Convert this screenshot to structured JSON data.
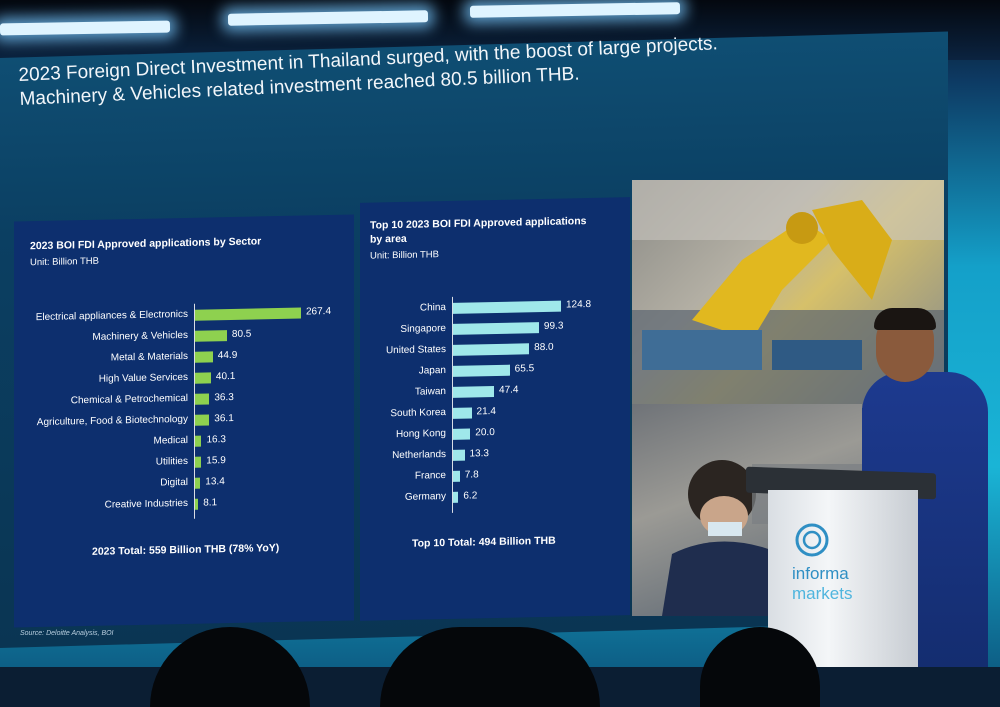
{
  "slide": {
    "headline_line1": "2023 Foreign Direct Investment in Thailand surged, with the boost of large projects.",
    "headline_line2": "Machinery & Vehicles related investment reached 80.5 billion THB.",
    "source": "Source: Deloitte Analysis, BOI"
  },
  "sector_chart": {
    "title": "2023 BOI FDI Approved applications by Sector",
    "unit": "Unit: Billion THB",
    "total": "2023 Total: 559 Billion THB (78% YoY)",
    "color": "#8ed14f",
    "rows": [
      {
        "label": "Electrical appliances & Electronics",
        "value": 267.4,
        "value_text": "267.4"
      },
      {
        "label": "Machinery & Vehicles",
        "value": 80.5,
        "value_text": "80.5"
      },
      {
        "label": "Metal & Materials",
        "value": 44.9,
        "value_text": "44.9"
      },
      {
        "label": "High Value Services",
        "value": 40.1,
        "value_text": "40.1"
      },
      {
        "label": "Chemical & Petrochemical",
        "value": 36.3,
        "value_text": "36.3"
      },
      {
        "label": "Agriculture, Food & Biotechnology",
        "value": 36.1,
        "value_text": "36.1"
      },
      {
        "label": "Medical",
        "value": 16.3,
        "value_text": "16.3"
      },
      {
        "label": "Utilities",
        "value": 15.9,
        "value_text": "15.9"
      },
      {
        "label": "Digital",
        "value": 13.4,
        "value_text": "13.4"
      },
      {
        "label": "Creative Industries",
        "value": 8.1,
        "value_text": "8.1"
      }
    ]
  },
  "area_chart": {
    "title": "Top 10 2023 BOI FDI Approved applications by area",
    "unit": "Unit: Billion THB",
    "total": "Top 10 Total: 494 Billion THB",
    "color": "#9fe8ea",
    "rows": [
      {
        "label": "China",
        "value": 124.8,
        "value_text": "124.8"
      },
      {
        "label": "Singapore",
        "value": 99.3,
        "value_text": "99.3"
      },
      {
        "label": "United States",
        "value": 88.0,
        "value_text": "88.0"
      },
      {
        "label": "Japan",
        "value": 65.5,
        "value_text": "65.5"
      },
      {
        "label": "Taiwan",
        "value": 47.4,
        "value_text": "47.4"
      },
      {
        "label": "South Korea",
        "value": 21.4,
        "value_text": "21.4"
      },
      {
        "label": "Hong Kong",
        "value": 20.0,
        "value_text": "20.0"
      },
      {
        "label": "Netherlands",
        "value": 13.3,
        "value_text": "13.3"
      },
      {
        "label": "France",
        "value": 7.8,
        "value_text": "7.8"
      },
      {
        "label": "Germany",
        "value": 6.2,
        "value_text": "6.2"
      }
    ]
  },
  "podium": {
    "brand_line1": "informa",
    "brand_line2": "markets",
    "brand_color": "#2f8fc4"
  }
}
